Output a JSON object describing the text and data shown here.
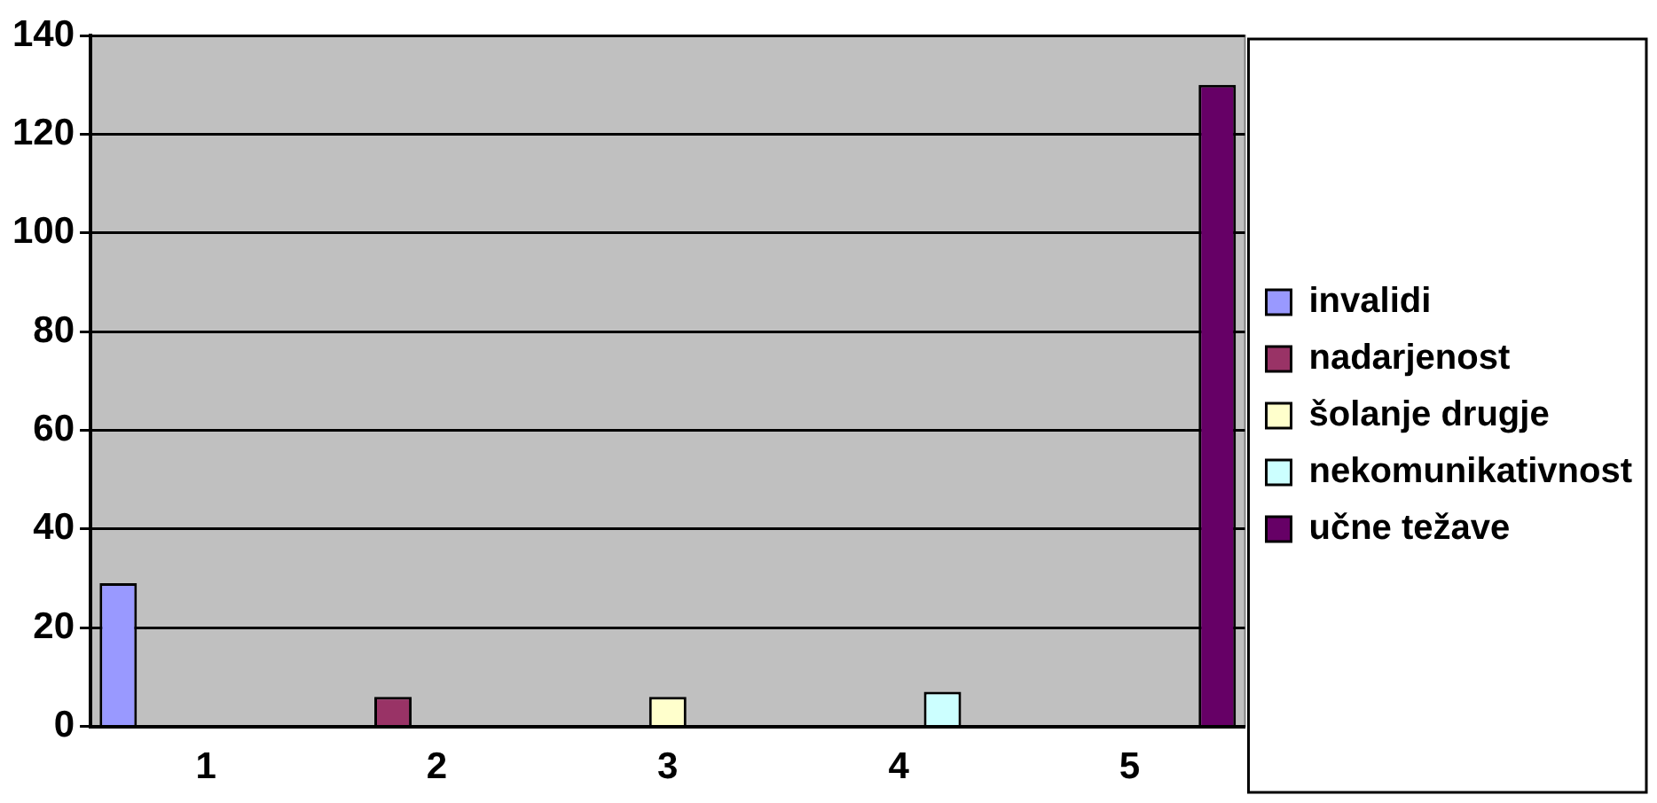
{
  "chart_data": {
    "type": "bar",
    "categories": [
      "1",
      "2",
      "3",
      "4",
      "5"
    ],
    "series": [
      {
        "name": "invalidi",
        "color": "#9999ff",
        "values": [
          29,
          null,
          null,
          null,
          null
        ]
      },
      {
        "name": "nadarjenost",
        "color": "#993366",
        "values": [
          null,
          6,
          null,
          null,
          null
        ]
      },
      {
        "name": "šolanje drugje",
        "color": "#ffffcc",
        "values": [
          null,
          null,
          6,
          null,
          null
        ]
      },
      {
        "name": "nekomunikativnost",
        "color": "#ccffff",
        "values": [
          null,
          null,
          null,
          7,
          null
        ]
      },
      {
        "name": "učne težave",
        "color": "#660066",
        "values": [
          null,
          null,
          null,
          null,
          130
        ]
      }
    ],
    "ylim": [
      0,
      140
    ],
    "yticks": [
      0,
      20,
      40,
      60,
      80,
      100,
      120,
      140
    ],
    "grid": "y",
    "legend": "right"
  }
}
